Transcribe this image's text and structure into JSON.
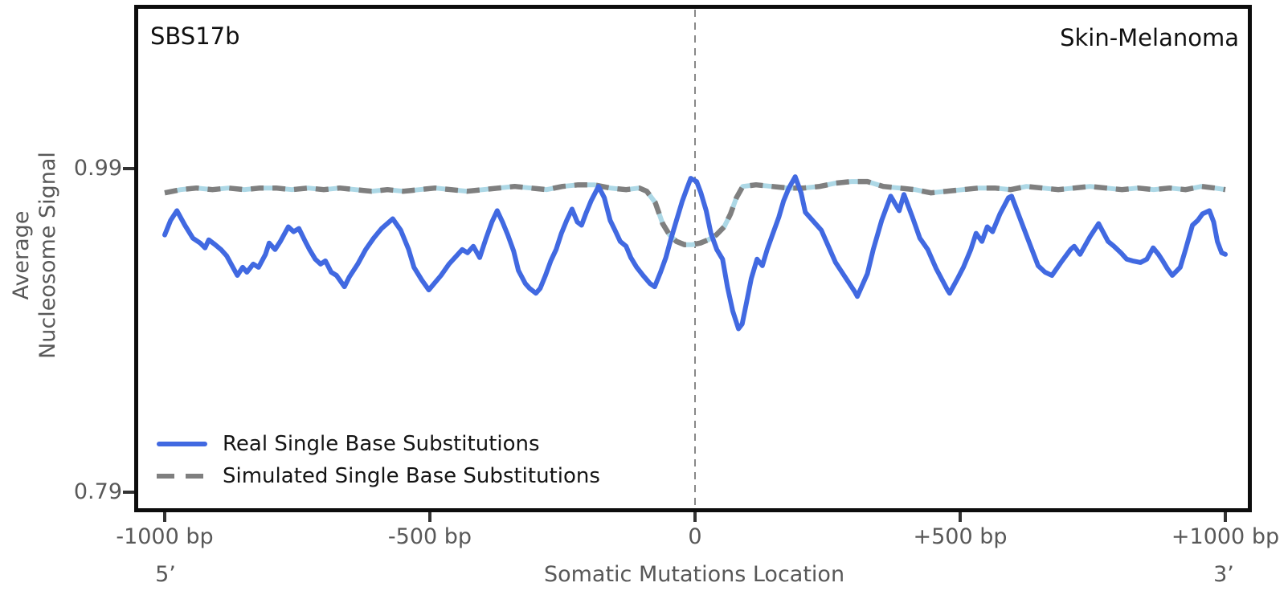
{
  "chart_data": {
    "type": "line",
    "title_left": "SBS17b",
    "title_right": "Skin-Melanoma",
    "xlabel": "Somatic Mutations Location",
    "ylabel": "Average Nucleosome Signal",
    "ylabel_lines": [
      "Average",
      "Nucleosome Signal"
    ],
    "end_labels": {
      "left": "5’",
      "right": "3’"
    },
    "x_ticks": [
      {
        "bp": -1000,
        "label": "-1000 bp"
      },
      {
        "bp": -500,
        "label": "-500 bp"
      },
      {
        "bp": 0,
        "label": "0"
      },
      {
        "bp": 500,
        "label": "+500 bp"
      },
      {
        "bp": 1000,
        "label": "+1000 bp"
      }
    ],
    "y_ticks": [
      {
        "value": 0.99,
        "label": "0.99"
      },
      {
        "value": 0.79,
        "label": "0.79"
      }
    ],
    "xlim": [
      -1000,
      1000
    ],
    "ylim": [
      0.78,
      1.09
    ],
    "grid": false,
    "legend_position": "lower left",
    "vline_x": 0,
    "colors": {
      "real": "#4169E1",
      "simulated": "#7f7f7f",
      "simulated_underlay": "#ADD8E6",
      "vline": "#888888",
      "spine": "#0d0d0d",
      "tick": "#333333",
      "text_gray": "#585858",
      "text_black": "#101010"
    },
    "series": [
      {
        "name": "Real Single Base Substitutions",
        "style": "solid",
        "points": [
          [
            -1000,
            0.949
          ],
          [
            -989,
            0.958
          ],
          [
            -977,
            0.964
          ],
          [
            -962,
            0.955
          ],
          [
            -947,
            0.947
          ],
          [
            -933,
            0.944
          ],
          [
            -924,
            0.941
          ],
          [
            -917,
            0.946
          ],
          [
            -905,
            0.943
          ],
          [
            -894,
            0.94
          ],
          [
            -883,
            0.936
          ],
          [
            -873,
            0.93
          ],
          [
            -863,
            0.924
          ],
          [
            -853,
            0.929
          ],
          [
            -845,
            0.926
          ],
          [
            -833,
            0.931
          ],
          [
            -823,
            0.929
          ],
          [
            -810,
            0.937
          ],
          [
            -803,
            0.944
          ],
          [
            -792,
            0.94
          ],
          [
            -782,
            0.945
          ],
          [
            -767,
            0.954
          ],
          [
            -757,
            0.951
          ],
          [
            -747,
            0.953
          ],
          [
            -735,
            0.945
          ],
          [
            -727,
            0.94
          ],
          [
            -716,
            0.934
          ],
          [
            -706,
            0.931
          ],
          [
            -697,
            0.933
          ],
          [
            -686,
            0.926
          ],
          [
            -676,
            0.924
          ],
          [
            -661,
            0.917
          ],
          [
            -652,
            0.923
          ],
          [
            -636,
            0.931
          ],
          [
            -621,
            0.94
          ],
          [
            -606,
            0.947
          ],
          [
            -591,
            0.953
          ],
          [
            -570,
            0.959
          ],
          [
            -555,
            0.952
          ],
          [
            -540,
            0.94
          ],
          [
            -530,
            0.929
          ],
          [
            -515,
            0.921
          ],
          [
            -502,
            0.915
          ],
          [
            -479,
            0.924
          ],
          [
            -464,
            0.931
          ],
          [
            -439,
            0.94
          ],
          [
            -429,
            0.938
          ],
          [
            -418,
            0.942
          ],
          [
            -406,
            0.935
          ],
          [
            -394,
            0.947
          ],
          [
            -383,
            0.957
          ],
          [
            -373,
            0.964
          ],
          [
            -363,
            0.957
          ],
          [
            -353,
            0.949
          ],
          [
            -342,
            0.939
          ],
          [
            -333,
            0.927
          ],
          [
            -320,
            0.919
          ],
          [
            -312,
            0.916
          ],
          [
            -300,
            0.913
          ],
          [
            -292,
            0.916
          ],
          [
            -282,
            0.924
          ],
          [
            -272,
            0.933
          ],
          [
            -262,
            0.94
          ],
          [
            -252,
            0.95
          ],
          [
            -242,
            0.958
          ],
          [
            -232,
            0.965
          ],
          [
            -222,
            0.957
          ],
          [
            -214,
            0.955
          ],
          [
            -206,
            0.962
          ],
          [
            -196,
            0.97
          ],
          [
            -182,
            0.979
          ],
          [
            -171,
            0.972
          ],
          [
            -160,
            0.958
          ],
          [
            -151,
            0.952
          ],
          [
            -141,
            0.945
          ],
          [
            -130,
            0.942
          ],
          [
            -121,
            0.935
          ],
          [
            -110,
            0.929
          ],
          [
            -98,
            0.924
          ],
          [
            -85,
            0.919
          ],
          [
            -76,
            0.917
          ],
          [
            -65,
            0.926
          ],
          [
            -55,
            0.935
          ],
          [
            -45,
            0.947
          ],
          [
            -35,
            0.958
          ],
          [
            -24,
            0.97
          ],
          [
            -15,
            0.978
          ],
          [
            -8,
            0.984
          ],
          [
            3,
            0.982
          ],
          [
            11,
            0.975
          ],
          [
            21,
            0.964
          ],
          [
            30,
            0.95
          ],
          [
            41,
            0.94
          ],
          [
            52,
            0.934
          ],
          [
            61,
            0.917
          ],
          [
            71,
            0.902
          ],
          [
            82,
            0.891
          ],
          [
            89,
            0.894
          ],
          [
            97,
            0.907
          ],
          [
            106,
            0.922
          ],
          [
            117,
            0.934
          ],
          [
            127,
            0.93
          ],
          [
            136,
            0.94
          ],
          [
            147,
            0.95
          ],
          [
            158,
            0.96
          ],
          [
            167,
            0.97
          ],
          [
            177,
            0.978
          ],
          [
            189,
            0.985
          ],
          [
            200,
            0.975
          ],
          [
            208,
            0.963
          ],
          [
            238,
            0.952
          ],
          [
            265,
            0.932
          ],
          [
            285,
            0.922
          ],
          [
            301,
            0.914
          ],
          [
            306,
            0.911
          ],
          [
            325,
            0.925
          ],
          [
            336,
            0.94
          ],
          [
            352,
            0.958
          ],
          [
            369,
            0.973
          ],
          [
            385,
            0.964
          ],
          [
            394,
            0.974
          ],
          [
            410,
            0.96
          ],
          [
            424,
            0.947
          ],
          [
            439,
            0.94
          ],
          [
            455,
            0.928
          ],
          [
            476,
            0.915
          ],
          [
            480,
            0.913
          ],
          [
            495,
            0.922
          ],
          [
            506,
            0.929
          ],
          [
            520,
            0.94
          ],
          [
            530,
            0.95
          ],
          [
            541,
            0.945
          ],
          [
            551,
            0.954
          ],
          [
            561,
            0.951
          ],
          [
            575,
            0.962
          ],
          [
            591,
            0.972
          ],
          [
            597,
            0.973
          ],
          [
            612,
            0.96
          ],
          [
            627,
            0.947
          ],
          [
            647,
            0.93
          ],
          [
            660,
            0.926
          ],
          [
            673,
            0.924
          ],
          [
            690,
            0.932
          ],
          [
            708,
            0.94
          ],
          [
            715,
            0.942
          ],
          [
            726,
            0.937
          ],
          [
            745,
            0.948
          ],
          [
            761,
            0.956
          ],
          [
            779,
            0.945
          ],
          [
            790,
            0.942
          ],
          [
            803,
            0.938
          ],
          [
            814,
            0.934
          ],
          [
            825,
            0.933
          ],
          [
            840,
            0.932
          ],
          [
            852,
            0.934
          ],
          [
            864,
            0.941
          ],
          [
            874,
            0.937
          ],
          [
            882,
            0.933
          ],
          [
            891,
            0.928
          ],
          [
            900,
            0.924
          ],
          [
            915,
            0.929
          ],
          [
            925,
            0.94
          ],
          [
            938,
            0.955
          ],
          [
            948,
            0.958
          ],
          [
            957,
            0.962
          ],
          [
            970,
            0.964
          ],
          [
            978,
            0.957
          ],
          [
            985,
            0.945
          ],
          [
            993,
            0.938
          ],
          [
            1000,
            0.937
          ]
        ]
      },
      {
        "name": "Simulated Single Base Substitutions",
        "style": "dashed",
        "points": [
          [
            -1000,
            0.975
          ],
          [
            -970,
            0.977
          ],
          [
            -940,
            0.978
          ],
          [
            -910,
            0.977
          ],
          [
            -880,
            0.978
          ],
          [
            -850,
            0.977
          ],
          [
            -820,
            0.978
          ],
          [
            -790,
            0.978
          ],
          [
            -760,
            0.977
          ],
          [
            -730,
            0.978
          ],
          [
            -700,
            0.977
          ],
          [
            -670,
            0.978
          ],
          [
            -640,
            0.977
          ],
          [
            -610,
            0.976
          ],
          [
            -580,
            0.977
          ],
          [
            -550,
            0.976
          ],
          [
            -520,
            0.977
          ],
          [
            -490,
            0.978
          ],
          [
            -460,
            0.977
          ],
          [
            -430,
            0.976
          ],
          [
            -400,
            0.977
          ],
          [
            -370,
            0.978
          ],
          [
            -340,
            0.979
          ],
          [
            -310,
            0.978
          ],
          [
            -280,
            0.977
          ],
          [
            -250,
            0.979
          ],
          [
            -220,
            0.98
          ],
          [
            -190,
            0.98
          ],
          [
            -160,
            0.978
          ],
          [
            -130,
            0.977
          ],
          [
            -105,
            0.978
          ],
          [
            -91,
            0.976
          ],
          [
            -75,
            0.969
          ],
          [
            -61,
            0.956
          ],
          [
            -48,
            0.949
          ],
          [
            -35,
            0.945
          ],
          [
            -20,
            0.943
          ],
          [
            -5,
            0.943
          ],
          [
            10,
            0.944
          ],
          [
            25,
            0.946
          ],
          [
            40,
            0.949
          ],
          [
            55,
            0.954
          ],
          [
            67,
            0.962
          ],
          [
            78,
            0.972
          ],
          [
            90,
            0.979
          ],
          [
            115,
            0.98
          ],
          [
            145,
            0.979
          ],
          [
            175,
            0.978
          ],
          [
            205,
            0.978
          ],
          [
            235,
            0.979
          ],
          [
            265,
            0.981
          ],
          [
            295,
            0.982
          ],
          [
            325,
            0.982
          ],
          [
            355,
            0.979
          ],
          [
            385,
            0.978
          ],
          [
            415,
            0.977
          ],
          [
            445,
            0.975
          ],
          [
            475,
            0.976
          ],
          [
            505,
            0.977
          ],
          [
            535,
            0.978
          ],
          [
            565,
            0.978
          ],
          [
            595,
            0.977
          ],
          [
            625,
            0.979
          ],
          [
            655,
            0.978
          ],
          [
            685,
            0.977
          ],
          [
            715,
            0.978
          ],
          [
            745,
            0.979
          ],
          [
            775,
            0.978
          ],
          [
            805,
            0.977
          ],
          [
            835,
            0.978
          ],
          [
            865,
            0.977
          ],
          [
            895,
            0.978
          ],
          [
            925,
            0.977
          ],
          [
            955,
            0.979
          ],
          [
            980,
            0.978
          ],
          [
            1000,
            0.977
          ]
        ]
      }
    ]
  }
}
